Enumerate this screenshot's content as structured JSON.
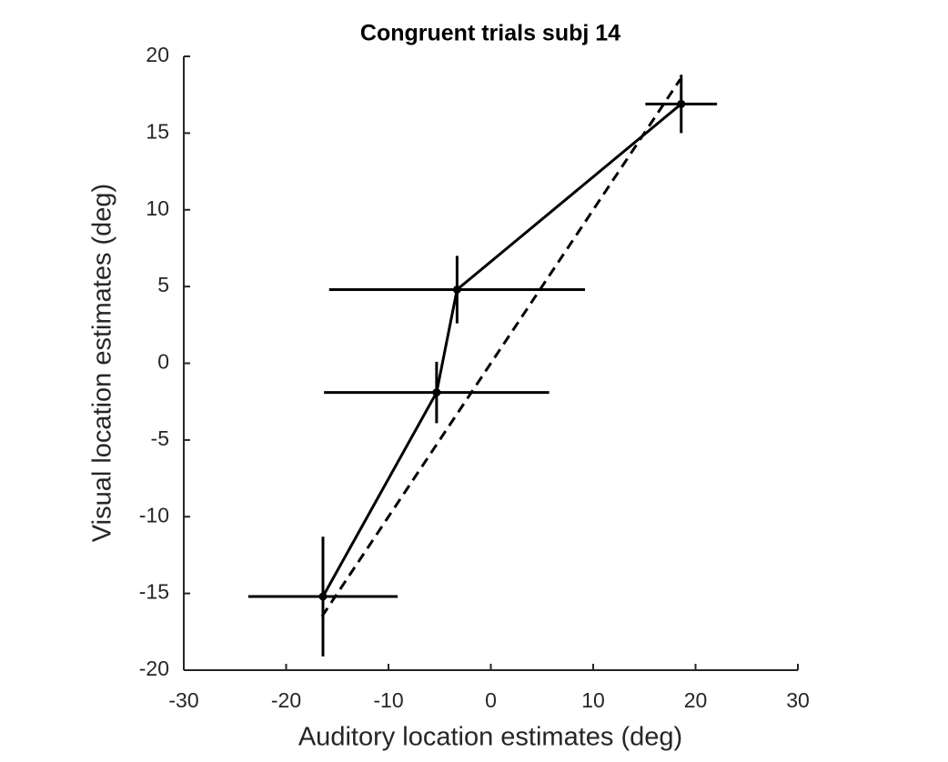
{
  "chart_data": {
    "type": "errorbar",
    "title": "Congruent trials subj 14",
    "xlabel": "Auditory location estimates (deg)",
    "ylabel": "Visual location estimates (deg)",
    "xlim": [
      -30,
      30
    ],
    "xticks": [
      -30,
      -20,
      -10,
      0,
      10,
      20,
      30
    ],
    "ylim": [
      -20,
      20
    ],
    "yticks": [
      -20,
      -15,
      -10,
      -5,
      0,
      5,
      10,
      15,
      20
    ],
    "series": [
      {
        "color": "#000000",
        "x": [
          -16.4,
          -5.3,
          -3.3,
          18.6
        ],
        "values": [
          -15.2,
          -1.9,
          4.8,
          16.9
        ],
        "xerr": [
          7.3,
          11,
          12.5,
          3.5
        ],
        "yerr": [
          3.9,
          2,
          2.2,
          1.9
        ]
      }
    ],
    "reference_line": {
      "color": "#000000",
      "dashed": true,
      "x": [
        -16.5,
        18.5
      ],
      "values": [
        -16.5,
        18.5
      ]
    }
  }
}
